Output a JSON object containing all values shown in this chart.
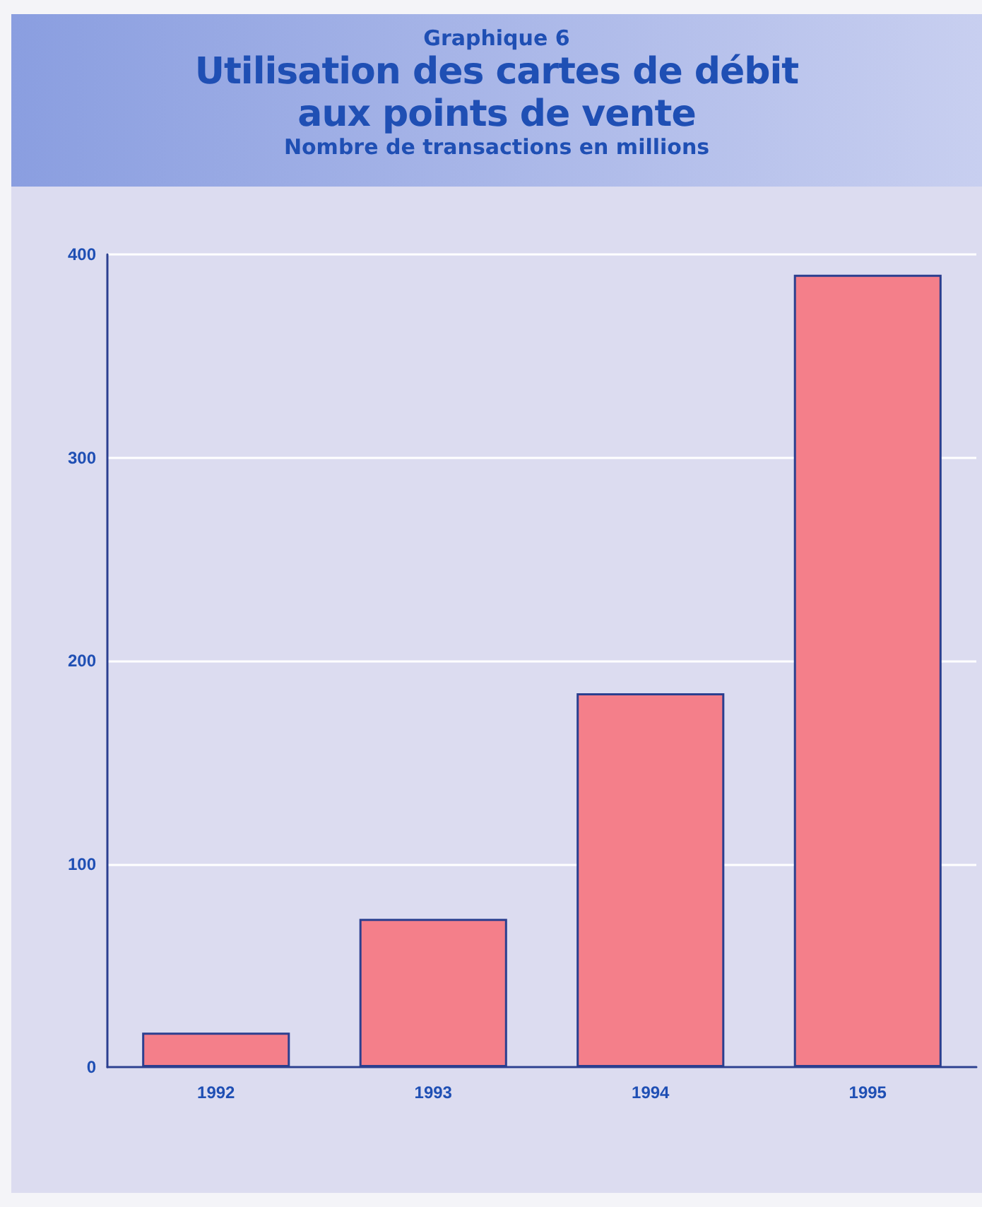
{
  "chart_data": {
    "type": "bar",
    "title": "Utilisation des cartes de débit aux points de vente",
    "subtitle": "Nombre de transactions en millions",
    "annotations": [
      "Graphique 6"
    ],
    "categories": [
      "1992",
      "1993",
      "1994",
      "1995"
    ],
    "values": [
      17,
      73,
      184,
      390
    ],
    "color": "#f47f8a",
    "ylim": [
      0,
      400
    ],
    "yticks": [
      0,
      100,
      200,
      300,
      400
    ],
    "grid": "y"
  }
}
